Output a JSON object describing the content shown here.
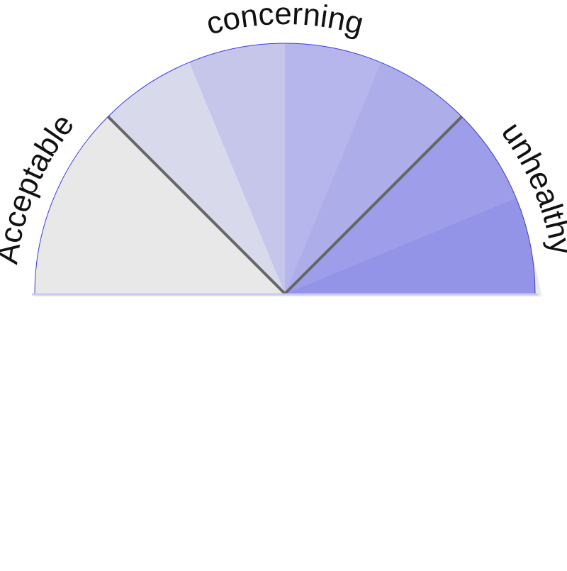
{
  "chart_data": {
    "type": "gauge",
    "title": "",
    "zones": [
      {
        "label": "Acceptable",
        "from": 0,
        "to": 0.25
      },
      {
        "label": "concerning",
        "from": 0.25,
        "to": 0.75
      },
      {
        "label": "unhealthy",
        "from": 0.75,
        "to": 1.0
      }
    ],
    "bands": [
      {
        "from": 0.0,
        "to": 0.25,
        "color": "#e8e8e8"
      },
      {
        "from": 0.25,
        "to": 0.375,
        "color": "#d9d9ec"
      },
      {
        "from": 0.375,
        "to": 0.5,
        "color": "#c6c6eb"
      },
      {
        "from": 0.5,
        "to": 0.625,
        "color": "#b6b6ec"
      },
      {
        "from": 0.625,
        "to": 0.75,
        "color": "#adadea"
      },
      {
        "from": 0.75,
        "to": 0.875,
        "color": "#9d9de9"
      },
      {
        "from": 0.875,
        "to": 1.0,
        "color": "#9393e8"
      }
    ],
    "dividers": [
      0.25,
      0.75
    ],
    "colors": {
      "outline": "#3a3aee",
      "divider": "#666666",
      "back_shadow": "#e9e9ea"
    }
  }
}
